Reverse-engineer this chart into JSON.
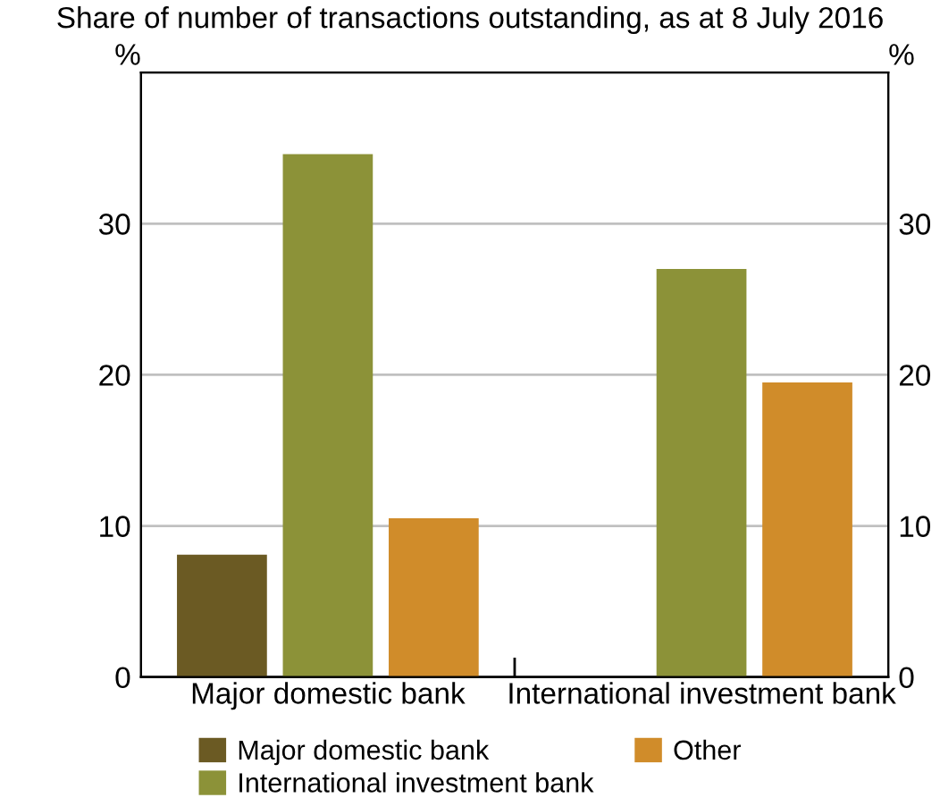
{
  "chart_data": {
    "type": "bar",
    "subtitle": "Share of number of transactions outstanding, as at 8 July 2016",
    "categories": [
      "Major domestic bank",
      "International investment bank"
    ],
    "series": [
      {
        "name": "Major domestic bank",
        "color": "#6b5a23",
        "values": [
          8.1,
          null
        ]
      },
      {
        "name": "International investment bank",
        "color": "#8c9238",
        "values": [
          34.6,
          27.0
        ]
      },
      {
        "name": "Other",
        "color": "#d08c2a",
        "values": [
          10.5,
          19.5
        ]
      }
    ],
    "ylabel": "%",
    "y2label": "%",
    "ylim": [
      0,
      40
    ],
    "yticks": [
      0,
      10,
      20,
      30
    ],
    "y2lim": [
      0,
      40
    ],
    "y2ticks": [
      0,
      10,
      20,
      30
    ],
    "grid": "y",
    "legend": "bottom"
  }
}
